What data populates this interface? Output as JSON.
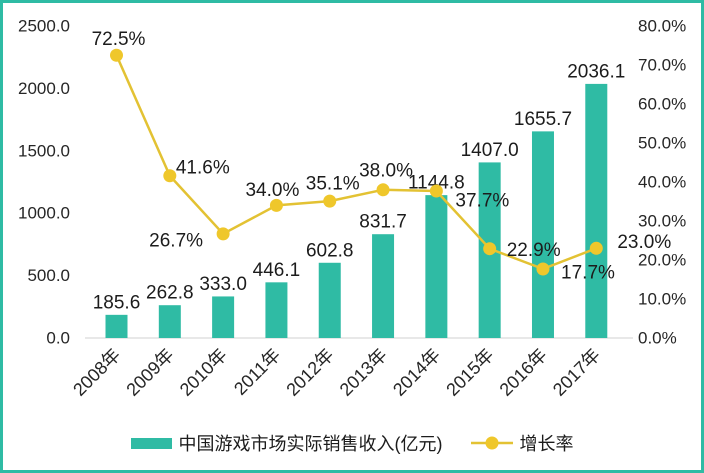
{
  "chart_data": {
    "type": "bar",
    "subtype": "combo-bar-line-dual-axis",
    "title": "",
    "categories": [
      "2008年",
      "2009年",
      "2010年",
      "2011年",
      "2012年",
      "2013年",
      "2014年",
      "2015年",
      "2016年",
      "2017年"
    ],
    "series": [
      {
        "name": "中国游戏市场实际销售收入(亿元)",
        "type": "bar",
        "axis": "left",
        "values": [
          185.6,
          262.8,
          333.0,
          446.1,
          602.8,
          831.7,
          1144.8,
          1407.0,
          1655.7,
          2036.1
        ],
        "labels": [
          "185.6",
          "262.8",
          "333.0",
          "446.1",
          "602.8",
          "831.7",
          "1144.8",
          "1407.0",
          "1655.7",
          "2036.1"
        ]
      },
      {
        "name": "增长率",
        "type": "line",
        "axis": "right",
        "values": [
          72.5,
          41.6,
          26.7,
          34.0,
          35.1,
          38.0,
          37.7,
          22.9,
          17.7,
          23.0
        ],
        "labels": [
          "72.5%",
          "41.6%",
          "26.7%",
          "34.0%",
          "35.1%",
          "38.0%",
          "37.7%",
          "22.9%",
          "17.7%",
          "23.0%"
        ],
        "label_offsets": [
          [
            2,
            -16
          ],
          [
            33,
            -8
          ],
          [
            -47,
            7
          ],
          [
            -4,
            -15
          ],
          [
            3,
            -17
          ],
          [
            3,
            -19
          ],
          [
            46,
            10
          ],
          [
            44,
            2
          ],
          [
            45,
            4
          ],
          [
            48,
            -6
          ]
        ]
      }
    ],
    "left_axis": {
      "label": "",
      "min": 0,
      "max": 2500,
      "ticks": [
        "0.0",
        "500.0",
        "1000.0",
        "1500.0",
        "2000.0",
        "2500.0"
      ]
    },
    "right_axis": {
      "label": "",
      "min": 0,
      "max": 80,
      "ticks": [
        "0.0%",
        "10.0%",
        "20.0%",
        "30.0%",
        "40.0%",
        "50.0%",
        "60.0%",
        "70.0%",
        "80.0%"
      ]
    },
    "grid": false,
    "legend_position": "bottom",
    "colors": {
      "bar": "#2fbba4",
      "line": "#e3c233",
      "marker": "#efc72b",
      "data_label": "#1c1c1c",
      "axis_text": "#262626",
      "axis_line": "#d9d9d9",
      "frame_border": "#2fbba4",
      "background": "#ffffff"
    }
  }
}
